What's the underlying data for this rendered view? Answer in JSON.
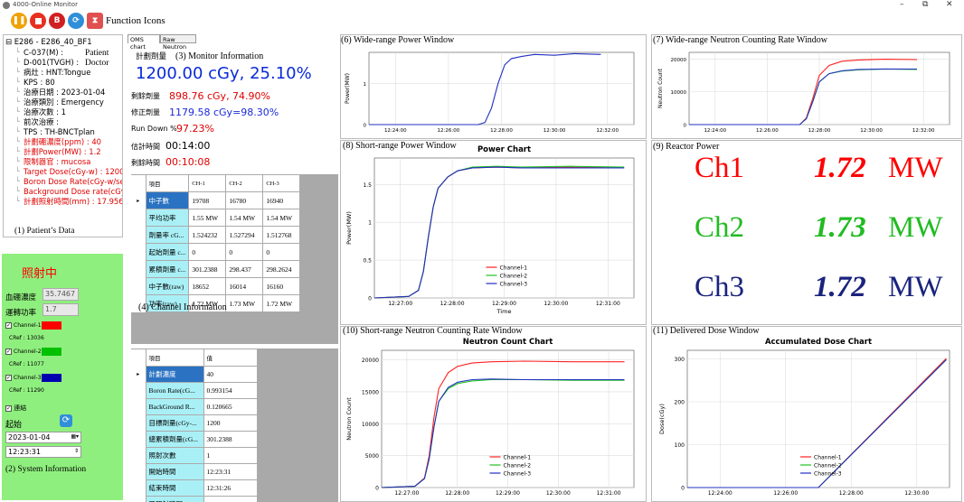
{
  "window": {
    "title": "4000-Online Monitor",
    "min": "–",
    "restore": "⧉",
    "close": "✕"
  },
  "toolbar": {
    "label": "Function Icons",
    "icons": [
      "pause-icon",
      "stop-icon",
      "boron-icon",
      "refresh-icon",
      "timer-icon"
    ],
    "boron_letter": "B"
  },
  "patient": {
    "root": "E286 - E286_40_BF1",
    "rows": [
      {
        "t": "C-037(M) :",
        "c": "n"
      },
      {
        "t": "D-001(TVGH) :",
        "c": "n"
      },
      {
        "t": "病灶 : HNT:Tongue",
        "c": "n"
      },
      {
        "t": "KPS : 80",
        "c": "n"
      },
      {
        "t": "治療日期 : 2023-01-04",
        "c": "n"
      },
      {
        "t": "治療類別 : Emergency",
        "c": "n"
      },
      {
        "t": "治療次數 : 1",
        "c": "n"
      },
      {
        "t": "前次治療 :",
        "c": "n"
      },
      {
        "t": "TPS : TH-BNCTplan",
        "c": "n"
      },
      {
        "t": "計劃硼濃度(ppm) : 40",
        "c": "r"
      },
      {
        "t": "計劃Power(MW) : 1.2",
        "c": "r"
      },
      {
        "t": "限制器官 : mucosa",
        "c": "r"
      },
      {
        "t": "Target Dose(cGy-w) : 1200",
        "c": "r"
      },
      {
        "t": "Boron Dose Rate(cGy-w/se",
        "c": "r"
      },
      {
        "t": "Background Dose rate(cGy",
        "c": "r"
      },
      {
        "t": "計劃照射時間(mm) : 17.956",
        "c": "r"
      }
    ],
    "patient_label": "Patient",
    "doctor_label": "Doctor",
    "caption": "(1) Patient’s Data"
  },
  "system": {
    "status": "照射中",
    "boron_label": "血硼濃度",
    "boron_value": "35.7467",
    "power_label": "運轉功率",
    "power_value": "1.7",
    "channels": [
      {
        "name": "Channel-1",
        "cref": "CRef : 13036",
        "color": "#ff0000"
      },
      {
        "name": "Channel-2",
        "cref": "CRef : 11077",
        "color": "#00c000"
      },
      {
        "name": "Channel-3",
        "cref": "CRef : 11290",
        "color": "#0000b0"
      }
    ],
    "link_label": "連結",
    "start_label": "起始",
    "date": "2023-01-04",
    "time": "12:23:31",
    "caption": "(2) System Information"
  },
  "tabs": [
    "OMS chart",
    "Raw Neutron"
  ],
  "monitor": {
    "plan_label": "計劃劑量",
    "caption": "(3) Monitor Information",
    "plan_value": "1200.00 cGy, 25.10%",
    "remain_label": "剩餘劑量",
    "remain_value": "898.76 cGy, 74.90%",
    "corr_label": "修正劑量",
    "corr_value": "1179.58 cGy=98.30%",
    "rundown_label": "Run Down %",
    "rundown_value": "97.23%",
    "est_label": "估計時間",
    "est_value": "00:14:00",
    "left_label": "剩餘時間",
    "left_value": "00:10:08"
  },
  "channel_table": {
    "header": [
      "項目",
      "CH-1",
      "CH-2",
      "CH-3"
    ],
    "rows": [
      [
        "中子數",
        "19708",
        "16780",
        "16940"
      ],
      [
        "平均功率",
        "1.55 MW",
        "1.54 MW",
        "1.54 MW"
      ],
      [
        "劑量率 cG...",
        "1.524232",
        "1.527294",
        "1.512768"
      ],
      [
        "起始劑量 c...",
        "0",
        "0",
        "0"
      ],
      [
        "累積劑量 c...",
        "301.2388",
        "298.437",
        "298.2624"
      ],
      [
        "中子數(raw)",
        "18652",
        "16014",
        "16160"
      ],
      [
        "功率(raw)",
        "1.72 MW",
        "1.73 MW",
        "1.72 MW"
      ]
    ],
    "caption": "(4) Channel Information"
  },
  "dose_table": {
    "header": [
      "項目",
      "值"
    ],
    "rows": [
      [
        "計劃濃度",
        "40"
      ],
      [
        "Boron Rate(cG...",
        "0.993154"
      ],
      [
        "BackGround R...",
        "0.120665"
      ],
      [
        "目標劑量(cGy-...",
        "1200"
      ],
      [
        "總累積劑量(cG...",
        "301.2388"
      ],
      [
        "照射次數",
        "1"
      ],
      [
        "開始時間",
        "12:23:31"
      ],
      [
        "結束時間",
        "12:31:26"
      ],
      [
        "已照射時間",
        "00:07:54"
      ]
    ]
  },
  "reactor": {
    "caption": "(9) Reactor Power",
    "rows": [
      {
        "ch": "Ch1",
        "val": "1.72",
        "unit": "MW",
        "color": "#ff0000"
      },
      {
        "ch": "Ch2",
        "val": "1.73",
        "unit": "MW",
        "color": "#22bb22"
      },
      {
        "ch": "Ch3",
        "val": "1.72",
        "unit": "MW",
        "color": "#1a237e"
      }
    ]
  },
  "chart_data": [
    {
      "id": "wide_power",
      "caption": "(6) Wide-range Power Window",
      "type": "line",
      "ylabel": "Power(MW)",
      "xticks": [
        "12:24:00",
        "12:26:00",
        "12:28:00",
        "12:30:00",
        "12:32:00"
      ],
      "yticks": [
        "0",
        "1"
      ],
      "ylim": [
        0,
        1.75
      ],
      "xlim": [
        0,
        8
      ],
      "series": [
        {
          "name": "",
          "color": "#2030c0",
          "x": [
            0,
            3.3,
            3.5,
            3.7,
            3.9,
            4.1,
            4.3,
            4.6,
            5,
            5.6,
            6.2,
            7
          ],
          "y": [
            0,
            0,
            0.05,
            0.4,
            1.0,
            1.45,
            1.6,
            1.65,
            1.7,
            1.68,
            1.72,
            1.7
          ]
        }
      ]
    },
    {
      "id": "wide_neutron",
      "caption": "(7) Wide-range Neutron Counting Rate Window",
      "type": "line",
      "ylabel": "Neutron Count",
      "xticks": [
        "12:24:00",
        "12:26:00",
        "12:28:00",
        "12:30:00",
        "12:32:00"
      ],
      "yticks": [
        "0",
        "10000",
        "20000"
      ],
      "ylim": [
        0,
        22000
      ],
      "xlim": [
        0,
        8
      ],
      "series": [
        {
          "name": "",
          "color": "#ff2020",
          "x": [
            0,
            3.4,
            3.6,
            3.8,
            4,
            4.3,
            4.7,
            5.2,
            6,
            7
          ],
          "y": [
            0,
            0,
            2000,
            8000,
            15000,
            18000,
            19300,
            19700,
            19900,
            19800
          ]
        },
        {
          "name": "",
          "color": "#20c020",
          "x": [
            0,
            3.4,
            3.6,
            3.8,
            4,
            4.3,
            4.7,
            5.2,
            6,
            7
          ],
          "y": [
            0,
            0,
            1800,
            7000,
            13000,
            15500,
            16300,
            16700,
            16900,
            16800
          ]
        },
        {
          "name": "",
          "color": "#2030c0",
          "x": [
            0,
            3.4,
            3.6,
            3.8,
            4,
            4.3,
            4.7,
            5.2,
            6,
            7
          ],
          "y": [
            0,
            0,
            1800,
            7000,
            13000,
            15500,
            16400,
            16800,
            16950,
            16900
          ]
        }
      ]
    },
    {
      "id": "short_power",
      "caption": "(8) Short-range Power Window",
      "title": "Power Chart",
      "type": "line",
      "xlabel": "Time",
      "ylabel": "Power(MW)",
      "xticks": [
        "12:27:00",
        "12:28:00",
        "12:29:00",
        "12:30:00",
        "12:31:00"
      ],
      "yticks": [
        "0",
        "0.5",
        "1",
        "1.5"
      ],
      "ylim": [
        0,
        1.85
      ],
      "xlim": [
        0,
        5.3
      ],
      "legend": "bottom-center",
      "series": [
        {
          "name": "Channel-1",
          "color": "#ff2020",
          "x": [
            0,
            0.7,
            0.9,
            1.0,
            1.1,
            1.2,
            1.3,
            1.5,
            1.7,
            2,
            2.5,
            3,
            4,
            5.1
          ],
          "y": [
            0,
            0.02,
            0.1,
            0.35,
            0.8,
            1.2,
            1.45,
            1.6,
            1.68,
            1.72,
            1.73,
            1.72,
            1.73,
            1.72
          ]
        },
        {
          "name": "Channel-2",
          "color": "#20c020",
          "x": [
            0,
            0.7,
            0.9,
            1.0,
            1.1,
            1.2,
            1.3,
            1.5,
            1.7,
            2,
            2.5,
            3,
            4,
            5.1
          ],
          "y": [
            0,
            0.02,
            0.1,
            0.35,
            0.8,
            1.2,
            1.45,
            1.6,
            1.68,
            1.73,
            1.74,
            1.73,
            1.74,
            1.73
          ]
        },
        {
          "name": "Channel-3",
          "color": "#2030c0",
          "x": [
            0,
            0.7,
            0.9,
            1.0,
            1.1,
            1.2,
            1.3,
            1.5,
            1.7,
            2,
            2.5,
            3,
            4,
            5.1
          ],
          "y": [
            0,
            0.02,
            0.1,
            0.35,
            0.8,
            1.2,
            1.45,
            1.6,
            1.68,
            1.72,
            1.73,
            1.72,
            1.72,
            1.72
          ]
        }
      ]
    },
    {
      "id": "short_neutron",
      "caption": "(10) Short-range Neutron Counting Rate Window",
      "title": "Neutron Count Chart",
      "type": "line",
      "ylabel": "Neutron Count",
      "xticks": [
        "12:27:00",
        "12:28:00",
        "12:29:00",
        "12:30:00",
        "12:31:00"
      ],
      "yticks": [
        "0",
        "5000",
        "10000",
        "15000",
        "20000"
      ],
      "ylim": [
        0,
        21500
      ],
      "xlim": [
        0,
        5.3
      ],
      "legend": "bottom-center",
      "series": [
        {
          "name": "Channel-1",
          "color": "#ff2020",
          "x": [
            0,
            0.7,
            0.9,
            1.0,
            1.1,
            1.2,
            1.4,
            1.6,
            1.9,
            2.3,
            3,
            4,
            5.1
          ],
          "y": [
            0,
            200,
            1500,
            5000,
            11000,
            15500,
            18000,
            19000,
            19500,
            19700,
            19800,
            19700,
            19700
          ]
        },
        {
          "name": "Channel-2",
          "color": "#20c020",
          "x": [
            0,
            0.7,
            0.9,
            1.0,
            1.1,
            1.2,
            1.4,
            1.6,
            1.9,
            2.3,
            3,
            4,
            5.1
          ],
          "y": [
            0,
            200,
            1400,
            4500,
            9500,
            13500,
            15500,
            16300,
            16700,
            16900,
            16900,
            16800,
            16800
          ]
        },
        {
          "name": "Channel-3",
          "color": "#2030c0",
          "x": [
            0,
            0.7,
            0.9,
            1.0,
            1.1,
            1.2,
            1.4,
            1.6,
            1.9,
            2.3,
            3,
            4,
            5.1
          ],
          "y": [
            0,
            200,
            1400,
            4500,
            9500,
            13500,
            15700,
            16500,
            16900,
            17000,
            16900,
            16900,
            16900
          ]
        }
      ]
    },
    {
      "id": "dose",
      "caption": "(11) Delivered Dose Window",
      "title": "Accumulated Dose Chart",
      "type": "line",
      "ylabel": "Dose(cGy)",
      "xticks": [
        "12:24:00",
        "12:26:00",
        "12:28:00",
        "12:30:00"
      ],
      "yticks": [
        "0",
        "100",
        "200",
        "300"
      ],
      "ylim": [
        0,
        320
      ],
      "xlim": [
        0,
        8
      ],
      "legend": "bottom-center",
      "series": [
        {
          "name": "Channel-1",
          "color": "#ff2020",
          "x": [
            0,
            4,
            7.9
          ],
          "y": [
            0,
            0,
            301
          ]
        },
        {
          "name": "Channel-2",
          "color": "#20c020",
          "x": [
            0,
            4,
            7.9
          ],
          "y": [
            0,
            0,
            298
          ]
        },
        {
          "name": "Channel-3",
          "color": "#2030c0",
          "x": [
            0,
            4,
            7.9
          ],
          "y": [
            0,
            0,
            298
          ]
        }
      ]
    }
  ]
}
